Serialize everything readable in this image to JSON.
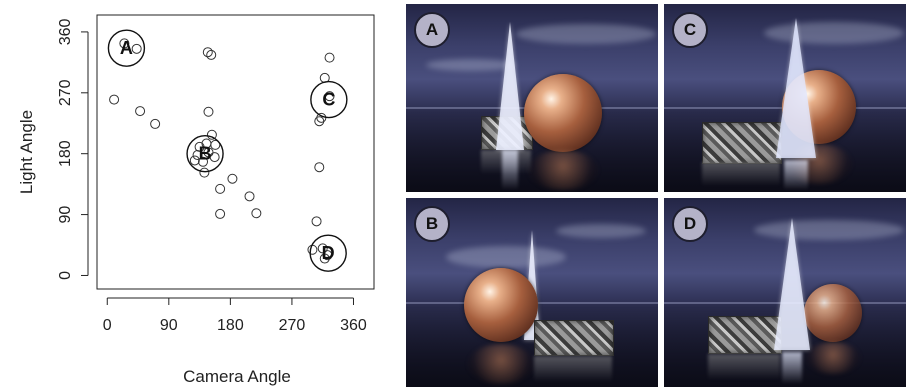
{
  "chart_data": {
    "type": "scatter",
    "xlabel": "Camera Angle",
    "ylabel": "Light Angle",
    "xlim": [
      -15,
      390
    ],
    "ylim": [
      -20,
      385
    ],
    "xticks": [
      0,
      90,
      180,
      270,
      360
    ],
    "yticks": [
      0,
      90,
      180,
      270,
      360
    ],
    "grid": false,
    "points": [
      {
        "x": 25,
        "y": 343
      },
      {
        "x": 43,
        "y": 335
      },
      {
        "x": 147,
        "y": 330
      },
      {
        "x": 152,
        "y": 326
      },
      {
        "x": 325,
        "y": 322
      },
      {
        "x": 318,
        "y": 292
      },
      {
        "x": 325,
        "y": 265
      },
      {
        "x": 10,
        "y": 260
      },
      {
        "x": 48,
        "y": 243
      },
      {
        "x": 70,
        "y": 224
      },
      {
        "x": 148,
        "y": 242
      },
      {
        "x": 313,
        "y": 233
      },
      {
        "x": 310,
        "y": 228
      },
      {
        "x": 153,
        "y": 208
      },
      {
        "x": 135,
        "y": 190
      },
      {
        "x": 145,
        "y": 195
      },
      {
        "x": 158,
        "y": 193
      },
      {
        "x": 132,
        "y": 178
      },
      {
        "x": 148,
        "y": 182
      },
      {
        "x": 140,
        "y": 168
      },
      {
        "x": 128,
        "y": 170
      },
      {
        "x": 157,
        "y": 175
      },
      {
        "x": 142,
        "y": 152
      },
      {
        "x": 310,
        "y": 160
      },
      {
        "x": 183,
        "y": 143
      },
      {
        "x": 165,
        "y": 128
      },
      {
        "x": 208,
        "y": 117
      },
      {
        "x": 218,
        "y": 92
      },
      {
        "x": 165,
        "y": 91
      },
      {
        "x": 306,
        "y": 80
      },
      {
        "x": 300,
        "y": 38
      },
      {
        "x": 315,
        "y": 40
      },
      {
        "x": 322,
        "y": 30
      },
      {
        "x": 318,
        "y": 25
      }
    ],
    "highlights": [
      {
        "label": "A",
        "x": 28,
        "y": 336
      },
      {
        "label": "B",
        "x": 143,
        "y": 180
      },
      {
        "label": "C",
        "x": 324,
        "y": 260
      },
      {
        "label": "D",
        "x": 323,
        "y": 33
      }
    ]
  },
  "panels": [
    {
      "label": "A"
    },
    {
      "label": "C"
    },
    {
      "label": "B"
    },
    {
      "label": "D"
    }
  ]
}
